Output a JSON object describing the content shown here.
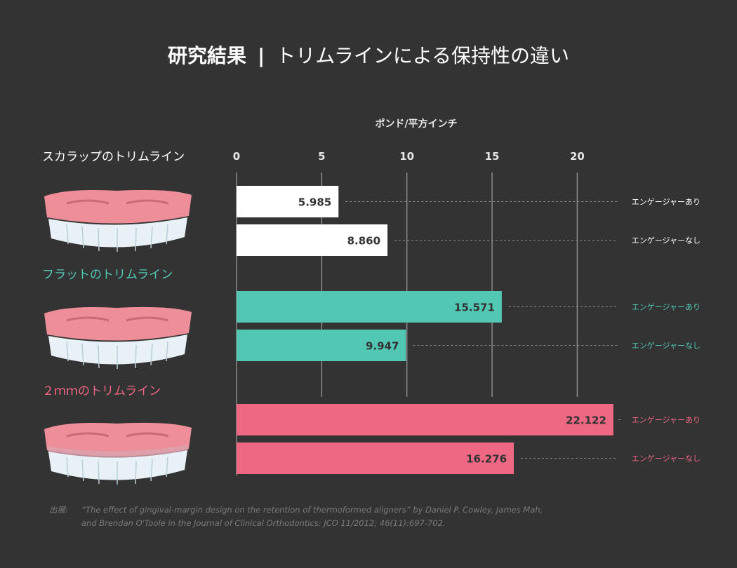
{
  "title": {
    "bold": "研究結果",
    "separator": "|",
    "light": "トリムラインによる保持性の違い"
  },
  "chart_data": {
    "type": "bar",
    "orientation": "horizontal",
    "xlabel": "ポンド/平方インチ",
    "xlim": [
      0,
      22.5
    ],
    "xticks": [
      0,
      5,
      10,
      15,
      20
    ],
    "grid": true,
    "groups": [
      {
        "name": "スカラップのトリムライン",
        "color": "#ffffff",
        "bars": [
          {
            "label": "エンゲージャーあり",
            "value": 5.985,
            "value_label": "5.985"
          },
          {
            "label": "エンゲージャーなし",
            "value": 8.86,
            "value_label": "8.860"
          }
        ]
      },
      {
        "name": "フラットのトリムライン",
        "color": "#52c7b4",
        "bars": [
          {
            "label": "エンゲージャーあり",
            "value": 15.571,
            "value_label": "15.571"
          },
          {
            "label": "エンゲージャーなし",
            "value": 9.947,
            "value_label": "9.947"
          }
        ]
      },
      {
        "name": "２ｍｍのトリムライン",
        "color": "#ee6783",
        "bars": [
          {
            "label": "エンゲージャーあり",
            "value": 22.122,
            "value_label": "22.122"
          },
          {
            "label": "エンゲージャーなし",
            "value": 16.276,
            "value_label": "16.276"
          }
        ]
      }
    ]
  },
  "source": {
    "label": "出展:",
    "line1": "“The effect of gingival-margin design on the retention of thermoformed aligners” by Daniel P. Cowley, James Mah,",
    "line2": "and Brendan O'Toole in the Journal of Clinical Orthodontics: JCO 11/2012; 46(11):697-702."
  },
  "colors": {
    "background": "#333333",
    "gum": "#ee8e98",
    "teeth": "#e8f2f6",
    "text_dark": "#333333"
  }
}
